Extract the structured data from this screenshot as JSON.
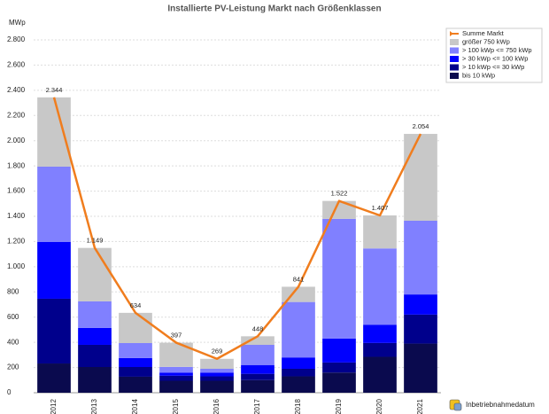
{
  "chart_data": {
    "type": "bar",
    "stacked": true,
    "title": "Installierte PV-Leistung Markt nach Größenklassen",
    "y_label": "MWp",
    "x_label": "Inbetriebnahmedatum",
    "categories": [
      "2012",
      "2013",
      "2014",
      "2015",
      "2016",
      "2017",
      "2018",
      "2019",
      "2020",
      "2021"
    ],
    "series": [
      {
        "name": "bis 10 kWp",
        "color": "#0a0a4e",
        "values": [
          232,
          204,
          127,
          95,
          95,
          100,
          130,
          160,
          285,
          390
        ]
      },
      {
        "name": "> 10 kWp <= 30 kWp",
        "color": "#00008c",
        "values": [
          514,
          176,
          77,
          40,
          35,
          50,
          60,
          80,
          110,
          230
        ]
      },
      {
        "name": "> 30 kWp <= 100 kWp",
        "color": "#0000ff",
        "values": [
          450,
          134,
          71,
          25,
          30,
          70,
          90,
          190,
          145,
          160
        ]
      },
      {
        "name": "> 100 kWp <= 750 kWp",
        "color": "#8080ff",
        "values": [
          598,
          211,
          119,
          45,
          30,
          160,
          440,
          950,
          605,
          585
        ]
      },
      {
        "name": "größer 750 kWp",
        "color": "#c8c8c8",
        "values": [
          550,
          424,
          240,
          192,
          79,
          68,
          121,
          142,
          262,
          689
        ]
      },
      {
        "name": "Summe Markt",
        "type": "line",
        "color": "#f07d1e",
        "values": [
          2344,
          1149,
          634,
          397,
          269,
          448,
          841,
          1522,
          1407,
          2054
        ],
        "value_labels": [
          "2.344",
          "1.149",
          "634",
          "397",
          "269",
          "448",
          "841",
          "1.522",
          "1.407",
          "2.054"
        ]
      }
    ],
    "ylim": [
      0,
      2800
    ],
    "yticks": [
      0,
      200,
      400,
      600,
      800,
      {
        "value": 1000,
        "label": "1.000"
      },
      {
        "value": 1200,
        "label": "1.200"
      },
      {
        "value": 1400,
        "label": "1.400"
      },
      {
        "value": 1600,
        "label": "1.600"
      },
      {
        "value": 1800,
        "label": "1.800"
      },
      {
        "value": 2000,
        "label": "2.000"
      },
      {
        "value": 2200,
        "label": "2.200"
      },
      {
        "value": 2400,
        "label": "2.400"
      },
      {
        "value": 2600,
        "label": "2.600"
      },
      {
        "value": 2800,
        "label": "2.800"
      }
    ],
    "grid": true
  }
}
